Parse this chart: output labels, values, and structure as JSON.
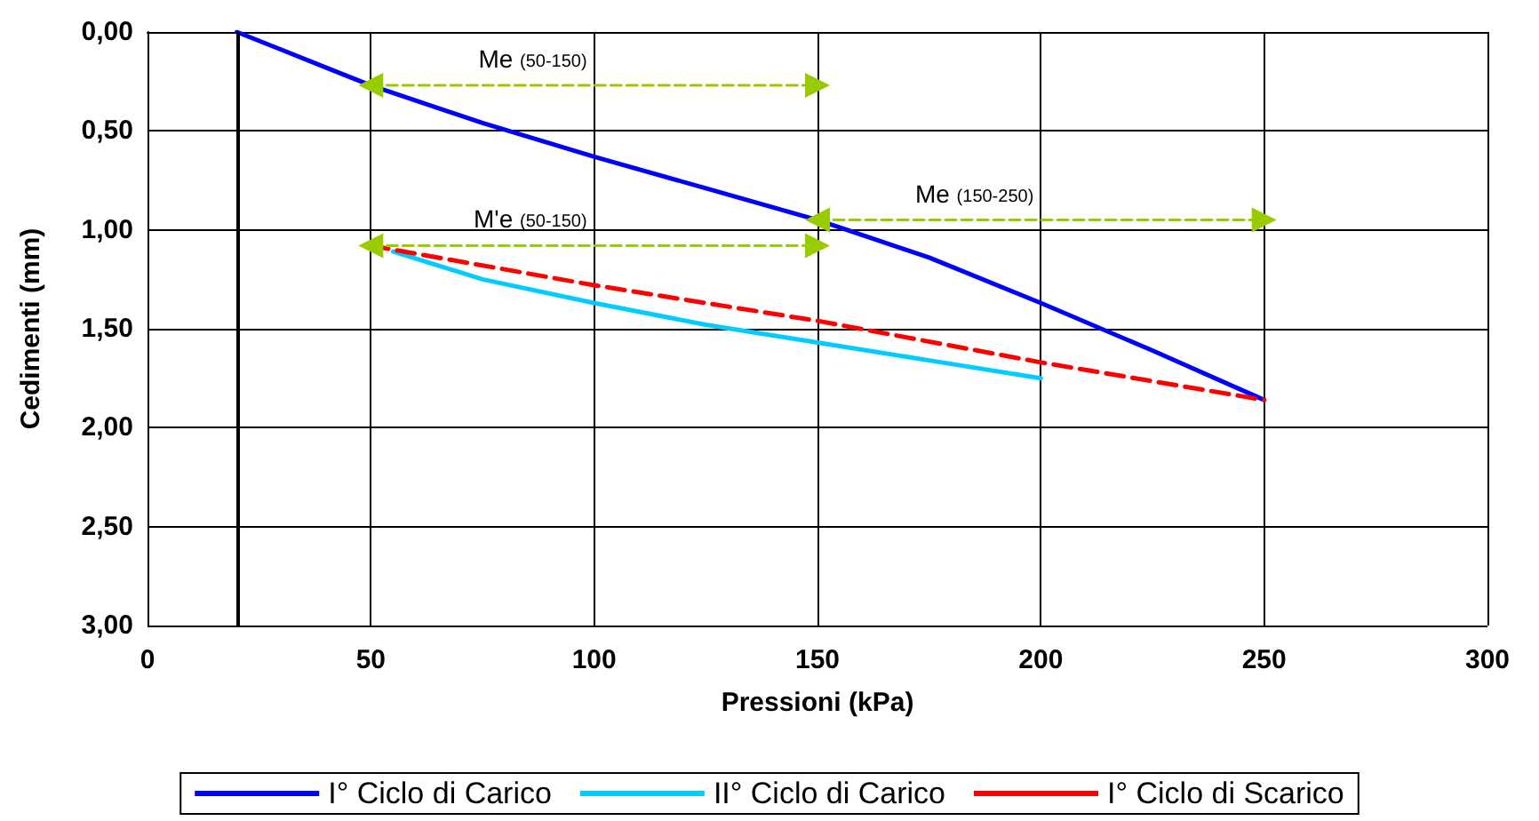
{
  "chart_data": {
    "type": "line",
    "xlabel": "Pressioni (kPa)",
    "ylabel": "Cedimenti (mm)",
    "xlim": [
      0,
      300
    ],
    "xticks": [
      0,
      50,
      100,
      150,
      200,
      250,
      300
    ],
    "ylim": [
      3,
      0
    ],
    "yticks": [
      {
        "value": 0,
        "label": "0,00"
      },
      {
        "value": 0.5,
        "label": "0,50"
      },
      {
        "value": 1,
        "label": "1,00"
      },
      {
        "value": 1.5,
        "label": "1,50"
      },
      {
        "value": 2,
        "label": "2,00"
      },
      {
        "value": 2.5,
        "label": "2,50"
      },
      {
        "value": 3,
        "label": "3,00"
      }
    ],
    "grid": true,
    "legend": "bottom",
    "marker": "none",
    "series": [
      {
        "name": "I° Ciclo di Carico",
        "color": "#0000ff",
        "line_style": "solid",
        "x": [
          20,
          30,
          40,
          50,
          75,
          100,
          125,
          150,
          175,
          200,
          225,
          250
        ],
        "values": [
          0,
          0.09,
          0.18,
          0.27,
          0.46,
          0.63,
          0.79,
          0.95,
          1.14,
          1.37,
          1.61,
          1.86
        ]
      },
      {
        "name": "II° Ciclo di Carico",
        "color": "#00ccff",
        "line_style": "solid",
        "x": [
          55,
          75,
          100,
          125,
          150,
          175,
          200
        ],
        "values": [
          1.11,
          1.25,
          1.37,
          1.48,
          1.57,
          1.66,
          1.75
        ]
      },
      {
        "name": "I° Ciclo di Scarico",
        "color": "#ff0000",
        "line_style": "dashed",
        "x": [
          50,
          100,
          150,
          200,
          250
        ],
        "values": [
          1.08,
          1.28,
          1.46,
          1.67,
          1.86
        ]
      },
      {
        "color": "#99cc00",
        "line_style": "dashed",
        "marker": "triangle",
        "x": [
          50,
          150
        ],
        "values": [
          0.27,
          0.27
        ]
      },
      {
        "color": "#99cc00",
        "line_style": "dashed",
        "marker": "triangle",
        "x": [
          150,
          250
        ],
        "values": [
          0.95,
          0.95
        ]
      },
      {
        "color": "#99cc00",
        "line_style": "dashed",
        "marker": "triangle",
        "x": [
          50,
          150
        ],
        "values": [
          1.08,
          1.08
        ]
      }
    ],
    "ref_lines": [
      {
        "axis": "x",
        "value": 20,
        "color": "#000000"
      }
    ],
    "annotations": [
      "Me $_{(50-150)}$",
      "Me $_{(150-250)}$",
      "M'e $_{(50-150)}$"
    ]
  }
}
